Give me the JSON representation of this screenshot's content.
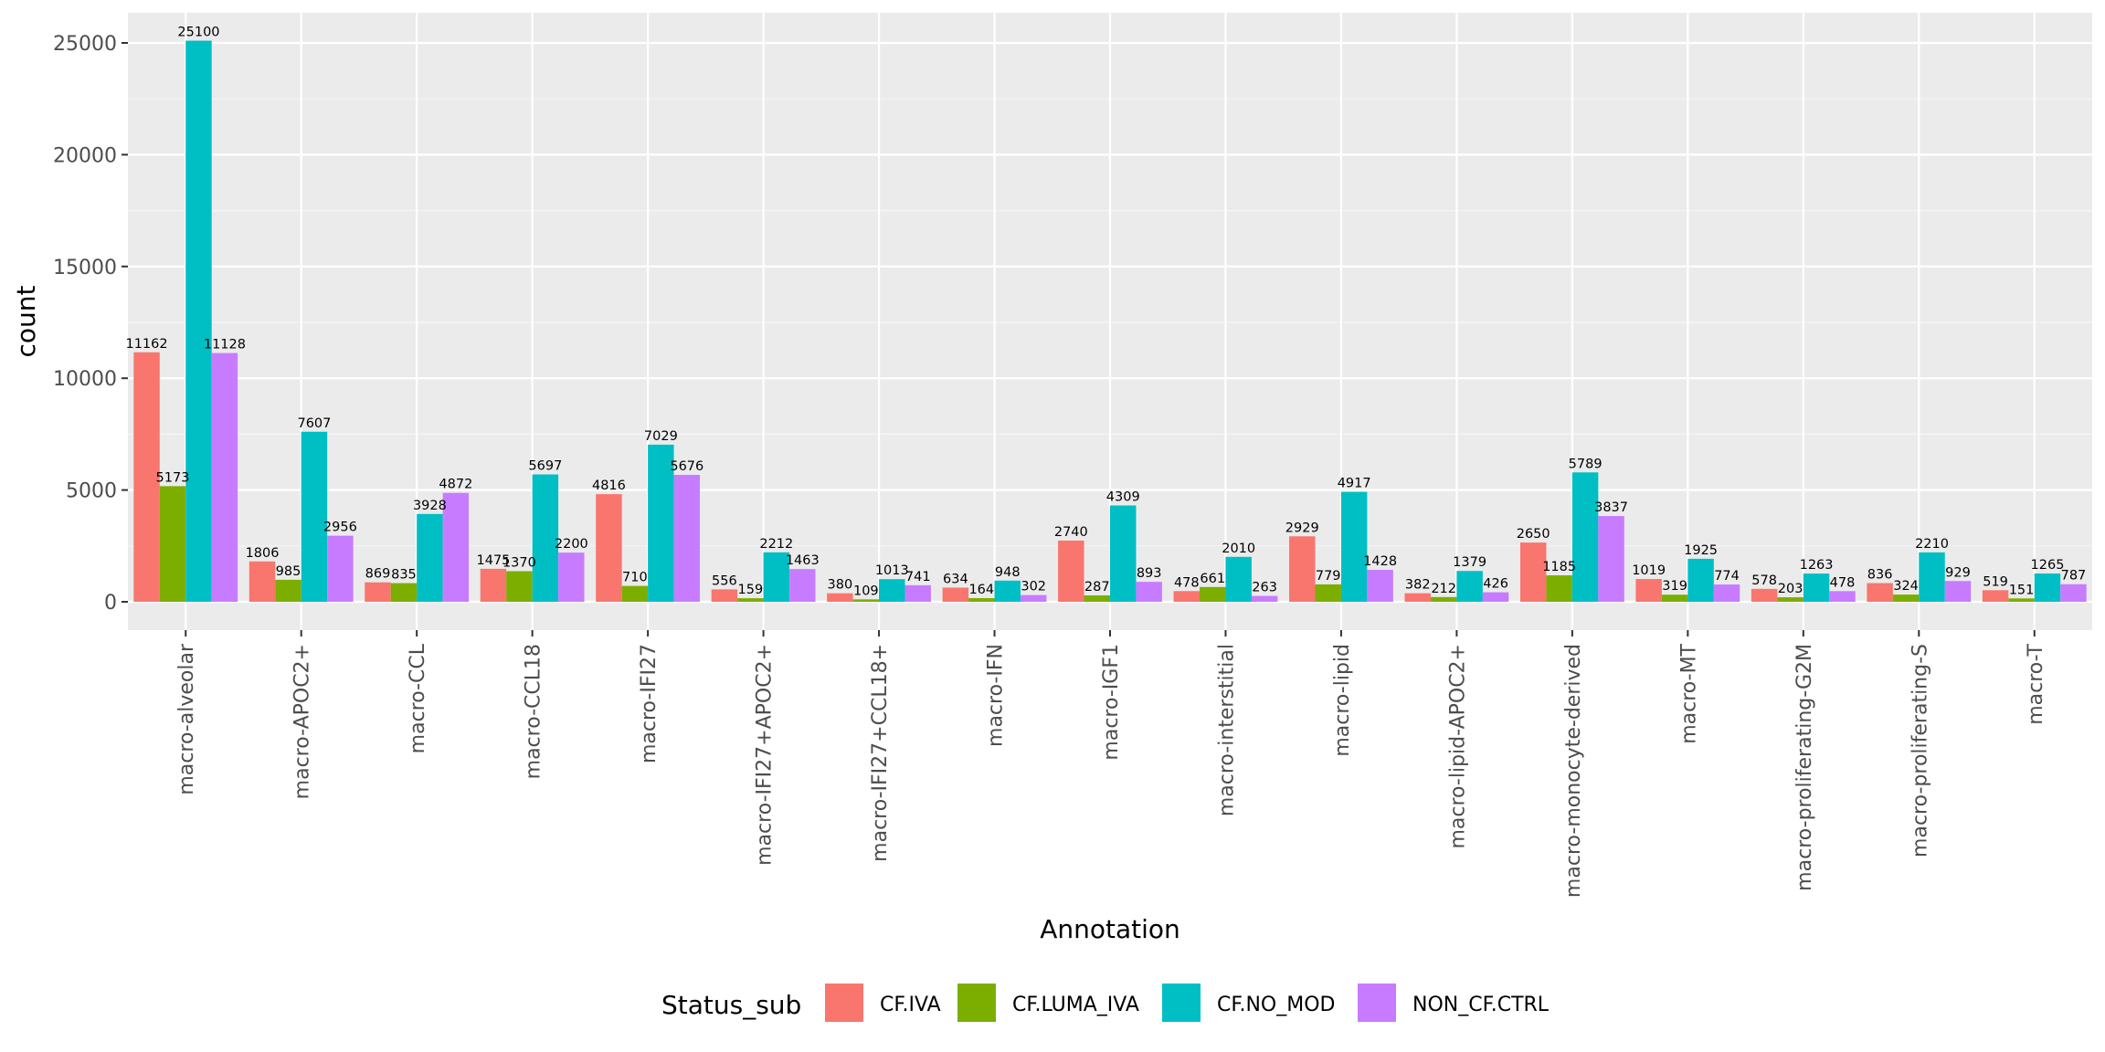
{
  "chart_data": {
    "type": "bar",
    "title": "",
    "xlabel": "Annotation",
    "ylabel": "count",
    "ylim": [
      0,
      26100
    ],
    "yticks": [
      0,
      5000,
      10000,
      15000,
      20000,
      25000
    ],
    "grid": true,
    "legend_title": "Status_sub",
    "legend_position": "bottom",
    "categories": [
      "macro-alveolar",
      "macro-APOC2+",
      "macro-CCL",
      "macro-CCL18",
      "macro-IFI27",
      "macro-IFI27+APOC2+",
      "macro-IFI27+CCL18+",
      "macro-IFN",
      "macro-IGF1",
      "macro-interstitial",
      "macro-lipid",
      "macro-lipid-APOC2+",
      "macro-monocyte-derived",
      "macro-MT",
      "macro-proliferating-G2M",
      "macro-proliferating-S",
      "macro-T"
    ],
    "series": [
      {
        "name": "CF.IVA",
        "color": "#F8766D",
        "values": [
          11162,
          1806,
          869,
          1475,
          4816,
          556,
          380,
          634,
          2740,
          478,
          2929,
          382,
          2650,
          1019,
          578,
          836,
          519
        ]
      },
      {
        "name": "CF.LUMA_IVA",
        "color": "#7CAE00",
        "values": [
          5173,
          985,
          835,
          1370,
          710,
          159,
          109,
          164,
          287,
          661,
          779,
          212,
          1185,
          319,
          203,
          324,
          151
        ]
      },
      {
        "name": "CF.NO_MOD",
        "color": "#00BFC4",
        "values": [
          25100,
          7607,
          3928,
          5697,
          7029,
          2212,
          1013,
          948,
          4309,
          2010,
          4917,
          1379,
          5789,
          1925,
          1263,
          2210,
          1265
        ]
      },
      {
        "name": "NON_CF.CTRL",
        "color": "#C77CFF",
        "values": [
          11128,
          2956,
          4872,
          2200,
          5676,
          1463,
          741,
          302,
          893,
          263,
          1428,
          426,
          3837,
          774,
          478,
          929,
          787
        ]
      }
    ],
    "colors": {
      "panel_background": "#EBEBEB",
      "grid_major": "#FFFFFF",
      "grid_minor": "#F5F5F5"
    }
  }
}
